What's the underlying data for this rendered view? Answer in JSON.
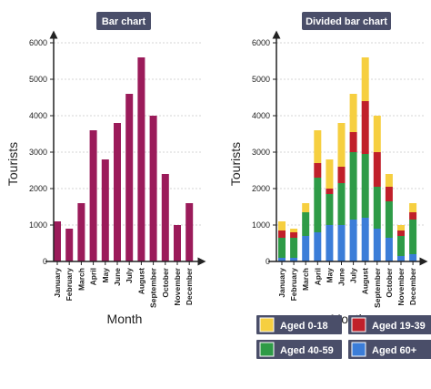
{
  "chart_data": [
    {
      "type": "bar",
      "title": "Bar chart",
      "xlabel": "Month",
      "ylabel": "Tourists",
      "ylim": [
        0,
        6000
      ],
      "yticks": [
        0,
        1000,
        2000,
        3000,
        4000,
        5000,
        6000
      ],
      "grid": true,
      "categories": [
        "January",
        "February",
        "March",
        "April",
        "May",
        "June",
        "July",
        "August",
        "September",
        "October",
        "November",
        "December"
      ],
      "values": [
        1100,
        900,
        1600,
        3600,
        2800,
        3800,
        4600,
        5600,
        4000,
        2400,
        1000,
        1600
      ],
      "color": "#9b1b5a"
    },
    {
      "type": "bar",
      "stacked": true,
      "title": "Divided bar chart",
      "xlabel": "Month",
      "ylabel": "Tourists",
      "ylim": [
        0,
        6000
      ],
      "yticks": [
        0,
        1000,
        2000,
        3000,
        4000,
        5000,
        6000
      ],
      "grid": true,
      "legend_position": "bottom",
      "categories": [
        "January",
        "February",
        "March",
        "April",
        "May",
        "June",
        "July",
        "August",
        "September",
        "October",
        "November",
        "December"
      ],
      "series": [
        {
          "name": "Aged 60+",
          "color": "#3b7dd8",
          "values": [
            100,
            100,
            700,
            800,
            1000,
            1000,
            1150,
            1200,
            900,
            650,
            150,
            200
          ]
        },
        {
          "name": "Aged 40-59",
          "color": "#2e9b47",
          "values": [
            550,
            550,
            650,
            1500,
            850,
            1150,
            1850,
            1750,
            1150,
            1000,
            550,
            950
          ]
        },
        {
          "name": "Aged 19-39",
          "color": "#c0202a",
          "values": [
            200,
            150,
            0,
            400,
            150,
            450,
            550,
            1450,
            950,
            400,
            150,
            200
          ]
        },
        {
          "name": "Aged 0-18",
          "color": "#f6cf40",
          "values": [
            250,
            100,
            250,
            900,
            800,
            1200,
            1050,
            1200,
            1000,
            350,
            150,
            250
          ]
        }
      ]
    }
  ]
}
